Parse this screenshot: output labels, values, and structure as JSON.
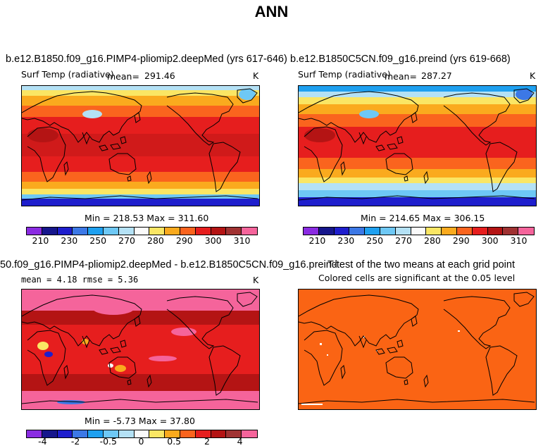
{
  "main_title": "ANN",
  "panels": [
    {
      "title": "b.e12.B1850.f09_g16.PIMP4-pliomip2.deepMed (yrs 617-646)",
      "left_label": "Surf Temp (radiative)",
      "stat_label": "mean=",
      "stat_value": "291.46",
      "unit": "K",
      "minmax": "Min = 218.53 Max = 311.60"
    },
    {
      "title": "b.e12.B1850C5CN.f09_g16.preind (yrs 619-668)",
      "left_label": "Surf Temp (radiative)",
      "stat_label": "mean=",
      "stat_value": "287.27",
      "unit": "K",
      "minmax": "Min = 214.65 Max = 306.15"
    },
    {
      "title": "50.f09_g16.PIMP4-pliomip2.deepMed - b.e12.B1850C5CN.f09_g16.preind",
      "stat_line": "mean =   4.18    rmse =   5.36",
      "unit": "K",
      "minmax": "Min =  -5.73 Max =  37.80"
    },
    {
      "title": "T-test of the two means at each grid point",
      "subtitle": "Colored cells are significant at the 0.05 level"
    }
  ],
  "colorbars": {
    "temp": {
      "colors": [
        "#8a2be2",
        "#16168c",
        "#1e1ecd",
        "#3c78e6",
        "#1ea0f0",
        "#6ec8f5",
        "#b4e1f5",
        "#fafafa",
        "#fae664",
        "#faaa1e",
        "#fa641e",
        "#e61e1e",
        "#b41414",
        "#a03232",
        "#f5649b"
      ],
      "tick_labels": [
        "210",
        "230",
        "250",
        "270",
        "280",
        "290",
        "300",
        "310"
      ]
    },
    "diff": {
      "colors": [
        "#8a2be2",
        "#16168c",
        "#1e1ecd",
        "#3c78e6",
        "#1ea0f0",
        "#6ec8f5",
        "#b4e1f5",
        "#fafafa",
        "#fae664",
        "#faaa1e",
        "#fa641e",
        "#e61e1e",
        "#b41414",
        "#a03232",
        "#f5649b"
      ],
      "tick_labels": [
        "-4",
        "-2",
        "-0.5",
        "0",
        "0.5",
        "2",
        "4"
      ]
    }
  },
  "chart_data": [
    {
      "type": "heatmap",
      "title": "b.e12.B1850.f09_g16.PIMP4-pliomip2.deepMed (yrs 617-646)",
      "variable": "Surf Temp (radiative)",
      "units": "K",
      "mean": 291.46,
      "min": 218.53,
      "max": 311.6,
      "contour_levels": [
        210,
        220,
        230,
        240,
        250,
        260,
        270,
        275,
        280,
        285,
        290,
        295,
        300,
        305,
        310
      ]
    },
    {
      "type": "heatmap",
      "title": "b.e12.B1850C5CN.f09_g16.preind (yrs 619-668)",
      "variable": "Surf Temp (radiative)",
      "units": "K",
      "mean": 287.27,
      "min": 214.65,
      "max": 306.15,
      "contour_levels": [
        210,
        220,
        230,
        240,
        250,
        260,
        270,
        275,
        280,
        285,
        290,
        295,
        300,
        305,
        310
      ]
    },
    {
      "type": "heatmap",
      "title": "50.f09_g16.PIMP4-pliomip2.deepMed - b.e12.B1850C5CN.f09_g16.preind",
      "units": "K",
      "mean": 4.18,
      "rmse": 5.36,
      "min": -5.73,
      "max": 37.8,
      "contour_levels": [
        -5,
        -4,
        -3,
        -2,
        -1,
        -0.5,
        -0.1,
        0,
        0.1,
        0.5,
        1,
        2,
        3,
        4,
        5
      ]
    },
    {
      "type": "heatmap",
      "title": "T-test of the two means at each grid point",
      "subtitle": "Colored cells are significant at the 0.05 level",
      "significance_level": 0.05
    }
  ]
}
